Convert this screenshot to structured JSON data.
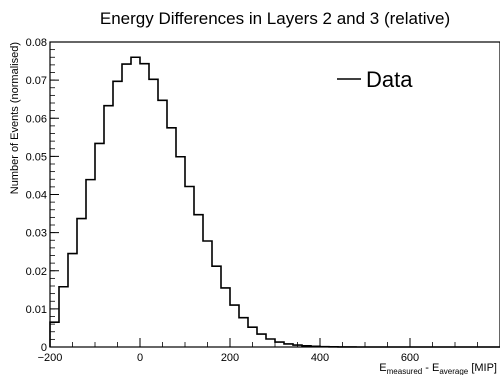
{
  "chart_data": {
    "type": "line",
    "style": "step-histogram",
    "title": "Energy Differences in Layers 2 and 3 (relative)",
    "ylabel": "Number of Events (normalised)",
    "xlabel": {
      "parts": [
        {
          "text": "E",
          "sub": false
        },
        {
          "text": "measured",
          "sub": true
        },
        {
          "text": " - E",
          "sub": false
        },
        {
          "text": "average",
          "sub": true
        },
        {
          "text": " [MIP]",
          "sub": false
        }
      ]
    },
    "xlim": [
      -200,
      800
    ],
    "ylim": [
      0,
      0.08
    ],
    "x_ticks": [
      -200,
      0,
      200,
      400,
      600
    ],
    "y_ticks": [
      0,
      0.01,
      0.02,
      0.03,
      0.04,
      0.05,
      0.06,
      0.07,
      0.08
    ],
    "x_tick_labels": [
      "−200",
      "0",
      "200",
      "400",
      "600"
    ],
    "y_tick_labels": [
      "0",
      "0.01",
      "0.02",
      "0.03",
      "0.04",
      "0.05",
      "0.06",
      "0.07",
      "0.08"
    ],
    "legend": {
      "entries": [
        "Data"
      ],
      "position": "top-right",
      "border": false
    },
    "grid": false,
    "bin_width": 20,
    "series": [
      {
        "name": "Data",
        "color": "#000000",
        "bin_edges": [
          -200,
          -180,
          -160,
          -140,
          -120,
          -100,
          -80,
          -60,
          -40,
          -20,
          0,
          20,
          40,
          60,
          80,
          100,
          120,
          140,
          160,
          180,
          200,
          220,
          240,
          260,
          280,
          300,
          320,
          340,
          360,
          380,
          400,
          420,
          440,
          460,
          480,
          500,
          520,
          540,
          560,
          580,
          600,
          620,
          640,
          660,
          680,
          700,
          720,
          740,
          760,
          780,
          800
        ],
        "values": [
          0.0065,
          0.0158,
          0.0245,
          0.0337,
          0.0439,
          0.0534,
          0.0633,
          0.0697,
          0.0742,
          0.076,
          0.0743,
          0.0702,
          0.0647,
          0.0575,
          0.0499,
          0.0421,
          0.0347,
          0.0278,
          0.0212,
          0.0155,
          0.011,
          0.0077,
          0.0052,
          0.0034,
          0.0021,
          0.0013,
          0.0008,
          0.0005,
          0.0003,
          0.0002,
          0.0001,
          5e-05,
          3e-05,
          1e-05,
          0,
          0,
          0,
          0,
          0,
          0,
          0,
          0,
          0,
          0,
          0,
          0,
          0,
          0,
          0,
          0
        ]
      }
    ]
  }
}
